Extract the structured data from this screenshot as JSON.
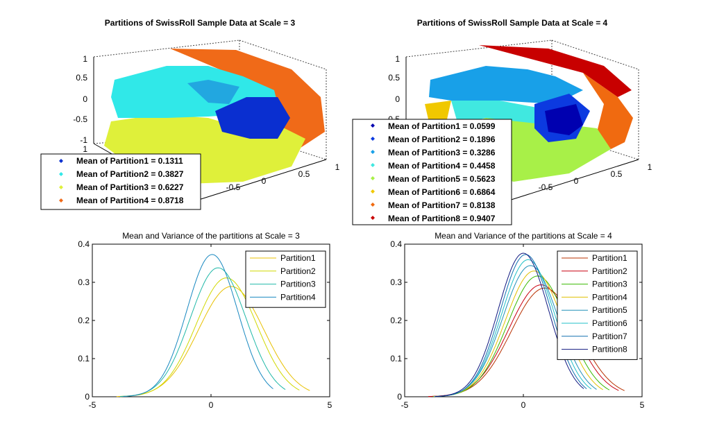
{
  "chart_data": [
    {
      "type": "scatter",
      "title": "Partitions of SwissRoll Sample Data at Scale = 3",
      "z_ticks": [
        "1",
        "0.5",
        "0",
        "-0.5",
        "-1"
      ],
      "y_ticks": [
        "1"
      ],
      "x_ticks": [
        "-0.5",
        "0",
        "0.5",
        "1"
      ],
      "legend": [
        {
          "label": "Mean of Partition1 = 0.1311",
          "color": "#0a2fd0"
        },
        {
          "label": "Mean of Partition2 = 0.3827",
          "color": "#30e8e8"
        },
        {
          "label": "Mean of Partition3 = 0.6227",
          "color": "#dff03a"
        },
        {
          "label": "Mean of Partition4 = 0.8718",
          "color": "#f06a18"
        }
      ]
    },
    {
      "type": "scatter",
      "title": "Partitions of SwissRoll Sample Data at Scale = 4",
      "z_ticks": [
        "1",
        "0.5",
        "0",
        "-0.5"
      ],
      "x_ticks": [
        "-0.5",
        "0",
        "0.5",
        "1"
      ],
      "legend": [
        {
          "label": "Mean of Partition1 = 0.0599",
          "color": "#0000b0"
        },
        {
          "label": "Mean of Partition2 = 0.1896",
          "color": "#0c3ae0"
        },
        {
          "label": "Mean of Partition3 = 0.3286",
          "color": "#18a0e8"
        },
        {
          "label": "Mean of Partition4 = 0.4458",
          "color": "#40e8e0"
        },
        {
          "label": "Mean of Partition5 = 0.5623",
          "color": "#a8f048"
        },
        {
          "label": "Mean of Partition6 = 0.6864",
          "color": "#f0c800"
        },
        {
          "label": "Mean of Partition7 = 0.8138",
          "color": "#f06a10"
        },
        {
          "label": "Mean of Partition8 = 0.9407",
          "color": "#c80000"
        }
      ]
    },
    {
      "type": "line",
      "title": "Mean and Variance of the partitions at Scale = 3",
      "xlim": [
        -5,
        5
      ],
      "ylim": [
        0,
        0.4
      ],
      "x_ticks": [
        "-5",
        "0",
        "5"
      ],
      "y_ticks": [
        "0",
        "0.1",
        "0.2",
        "0.3",
        "0.4"
      ],
      "series": [
        {
          "name": "Partition1",
          "mean": 0.85,
          "sd": 1.38,
          "color": "#e8c000"
        },
        {
          "name": "Partition2",
          "mean": 0.65,
          "sd": 1.28,
          "color": "#d0d800"
        },
        {
          "name": "Partition3",
          "mean": 0.3,
          "sd": 1.18,
          "color": "#20b8a8"
        },
        {
          "name": "Partition4",
          "mean": 0.05,
          "sd": 1.07,
          "color": "#1888c0"
        }
      ]
    },
    {
      "type": "line",
      "title": "Mean and Variance of the partitions at Scale = 4",
      "xlim": [
        -5,
        5
      ],
      "ylim": [
        0,
        0.4
      ],
      "x_ticks": [
        "-5",
        "0",
        "5"
      ],
      "y_ticks": [
        "0",
        "0.1",
        "0.2",
        "0.3",
        "0.4"
      ],
      "series": [
        {
          "name": "Partition1",
          "mean": 0.9,
          "sd": 1.4,
          "color": "#b83000"
        },
        {
          "name": "Partition2",
          "mean": 0.75,
          "sd": 1.36,
          "color": "#c80010"
        },
        {
          "name": "Partition3",
          "mean": 0.6,
          "sd": 1.26,
          "color": "#38b800"
        },
        {
          "name": "Partition4",
          "mean": 0.45,
          "sd": 1.21,
          "color": "#e0c000"
        },
        {
          "name": "Partition5",
          "mean": 0.3,
          "sd": 1.16,
          "color": "#2090b8"
        },
        {
          "name": "Partition6",
          "mean": 0.2,
          "sd": 1.11,
          "color": "#20c0c8"
        },
        {
          "name": "Partition7",
          "mean": 0.1,
          "sd": 1.07,
          "color": "#1070b0"
        },
        {
          "name": "Partition8",
          "mean": 0.0,
          "sd": 1.06,
          "color": "#101880"
        }
      ]
    }
  ]
}
